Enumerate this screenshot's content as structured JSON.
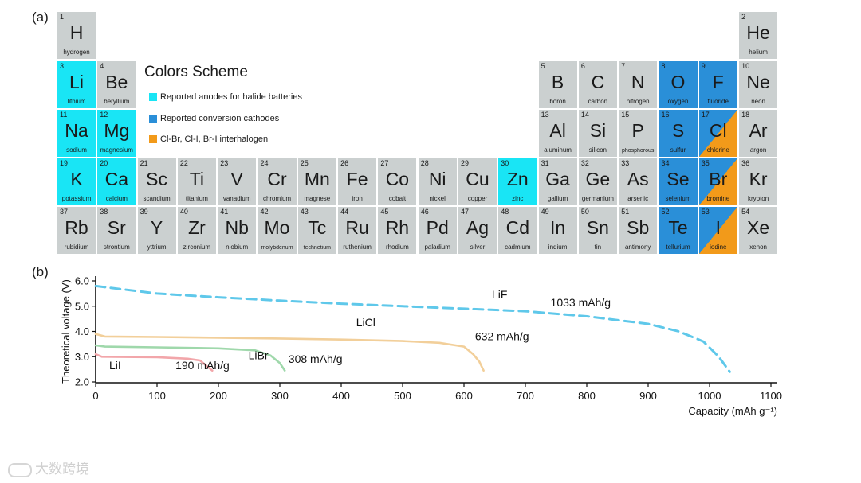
{
  "panel_a_label": "(a)",
  "panel_b_label": "(b)",
  "legend": {
    "title": "Colors Scheme",
    "items": [
      {
        "label": "Reported anodes for halide batteries",
        "color": "#19e5f5"
      },
      {
        "label": "Reported conversion cathodes",
        "color": "#2a8fd8"
      },
      {
        "label": "Cl-Br, Cl-I, Br-I interhalogen",
        "color": "#f29a1a"
      }
    ]
  },
  "elements": [
    {
      "num": "1",
      "sym": "H",
      "name": "hydrogen",
      "col": 1,
      "row": 1,
      "cat": "none"
    },
    {
      "num": "2",
      "sym": "He",
      "name": "helium",
      "col": 18,
      "row": 1,
      "cat": "none"
    },
    {
      "num": "3",
      "sym": "Li",
      "name": "lithium",
      "col": 1,
      "row": 2,
      "cat": "anode"
    },
    {
      "num": "4",
      "sym": "Be",
      "name": "beryllium",
      "col": 2,
      "row": 2,
      "cat": "none"
    },
    {
      "num": "5",
      "sym": "B",
      "name": "boron",
      "col": 13,
      "row": 2,
      "cat": "none"
    },
    {
      "num": "6",
      "sym": "C",
      "name": "carbon",
      "col": 14,
      "row": 2,
      "cat": "none"
    },
    {
      "num": "7",
      "sym": "N",
      "name": "nitrogen",
      "col": 15,
      "row": 2,
      "cat": "none"
    },
    {
      "num": "8",
      "sym": "O",
      "name": "oxygen",
      "col": 16,
      "row": 2,
      "cat": "cathode"
    },
    {
      "num": "9",
      "sym": "F",
      "name": "fluoride",
      "col": 17,
      "row": 2,
      "cat": "cathode"
    },
    {
      "num": "10",
      "sym": "Ne",
      "name": "neon",
      "col": 18,
      "row": 2,
      "cat": "none"
    },
    {
      "num": "11",
      "sym": "Na",
      "name": "sodium",
      "col": 1,
      "row": 3,
      "cat": "anode"
    },
    {
      "num": "12",
      "sym": "Mg",
      "name": "magnesium",
      "col": 2,
      "row": 3,
      "cat": "anode"
    },
    {
      "num": "13",
      "sym": "Al",
      "name": "aluminum",
      "col": 13,
      "row": 3,
      "cat": "none"
    },
    {
      "num": "14",
      "sym": "Si",
      "name": "silicon",
      "col": 14,
      "row": 3,
      "cat": "none"
    },
    {
      "num": "15",
      "sym": "P",
      "name": "phosphorous",
      "col": 15,
      "row": 3,
      "cat": "none"
    },
    {
      "num": "16",
      "sym": "S",
      "name": "sulfur",
      "col": 16,
      "row": 3,
      "cat": "cathode"
    },
    {
      "num": "17",
      "sym": "Cl",
      "name": "chlorine",
      "col": 17,
      "row": 3,
      "cat": "halo"
    },
    {
      "num": "18",
      "sym": "Ar",
      "name": "argon",
      "col": 18,
      "row": 3,
      "cat": "none"
    },
    {
      "num": "19",
      "sym": "K",
      "name": "potassium",
      "col": 1,
      "row": 4,
      "cat": "anode"
    },
    {
      "num": "20",
      "sym": "Ca",
      "name": "calcium",
      "col": 2,
      "row": 4,
      "cat": "anode"
    },
    {
      "num": "21",
      "sym": "Sc",
      "name": "scandium",
      "col": 3,
      "row": 4,
      "cat": "none"
    },
    {
      "num": "22",
      "sym": "Ti",
      "name": "titanium",
      "col": 4,
      "row": 4,
      "cat": "none"
    },
    {
      "num": "23",
      "sym": "V",
      "name": "vanadium",
      "col": 5,
      "row": 4,
      "cat": "none"
    },
    {
      "num": "24",
      "sym": "Cr",
      "name": "chromium",
      "col": 6,
      "row": 4,
      "cat": "none"
    },
    {
      "num": "25",
      "sym": "Mn",
      "name": "magnese",
      "col": 7,
      "row": 4,
      "cat": "none"
    },
    {
      "num": "26",
      "sym": "Fe",
      "name": "iron",
      "col": 8,
      "row": 4,
      "cat": "none"
    },
    {
      "num": "27",
      "sym": "Co",
      "name": "cobalt",
      "col": 9,
      "row": 4,
      "cat": "none"
    },
    {
      "num": "28",
      "sym": "Ni",
      "name": "nickel",
      "col": 10,
      "row": 4,
      "cat": "none"
    },
    {
      "num": "29",
      "sym": "Cu",
      "name": "copper",
      "col": 11,
      "row": 4,
      "cat": "none"
    },
    {
      "num": "30",
      "sym": "Zn",
      "name": "zinc",
      "col": 12,
      "row": 4,
      "cat": "anode"
    },
    {
      "num": "31",
      "sym": "Ga",
      "name": "gallium",
      "col": 13,
      "row": 4,
      "cat": "none"
    },
    {
      "num": "32",
      "sym": "Ge",
      "name": "germanium",
      "col": 14,
      "row": 4,
      "cat": "none"
    },
    {
      "num": "33",
      "sym": "As",
      "name": "arsenic",
      "col": 15,
      "row": 4,
      "cat": "none"
    },
    {
      "num": "34",
      "sym": "Se",
      "name": "selenium",
      "col": 16,
      "row": 4,
      "cat": "cathode"
    },
    {
      "num": "35",
      "sym": "Br",
      "name": "bromine",
      "col": 17,
      "row": 4,
      "cat": "halo"
    },
    {
      "num": "36",
      "sym": "Kr",
      "name": "krypton",
      "col": 18,
      "row": 4,
      "cat": "none"
    },
    {
      "num": "37",
      "sym": "Rb",
      "name": "rubidium",
      "col": 1,
      "row": 5,
      "cat": "none"
    },
    {
      "num": "38",
      "sym": "Sr",
      "name": "strontium",
      "col": 2,
      "row": 5,
      "cat": "none"
    },
    {
      "num": "39",
      "sym": "Y",
      "name": "yttrium",
      "col": 3,
      "row": 5,
      "cat": "none"
    },
    {
      "num": "40",
      "sym": "Zr",
      "name": "zirconium",
      "col": 4,
      "row": 5,
      "cat": "none"
    },
    {
      "num": "41",
      "sym": "Nb",
      "name": "niobium",
      "col": 5,
      "row": 5,
      "cat": "none"
    },
    {
      "num": "42",
      "sym": "Mo",
      "name": "molybdenum",
      "col": 6,
      "row": 5,
      "cat": "none"
    },
    {
      "num": "43",
      "sym": "Tc",
      "name": "technetium",
      "col": 7,
      "row": 5,
      "cat": "none"
    },
    {
      "num": "44",
      "sym": "Ru",
      "name": "ruthenium",
      "col": 8,
      "row": 5,
      "cat": "none"
    },
    {
      "num": "45",
      "sym": "Rh",
      "name": "rhodium",
      "col": 9,
      "row": 5,
      "cat": "none"
    },
    {
      "num": "46",
      "sym": "Pd",
      "name": "paladium",
      "col": 10,
      "row": 5,
      "cat": "none"
    },
    {
      "num": "47",
      "sym": "Ag",
      "name": "silver",
      "col": 11,
      "row": 5,
      "cat": "none"
    },
    {
      "num": "48",
      "sym": "Cd",
      "name": "cadmium",
      "col": 12,
      "row": 5,
      "cat": "none"
    },
    {
      "num": "49",
      "sym": "In",
      "name": "indium",
      "col": 13,
      "row": 5,
      "cat": "none"
    },
    {
      "num": "50",
      "sym": "Sn",
      "name": "tin",
      "col": 14,
      "row": 5,
      "cat": "none"
    },
    {
      "num": "51",
      "sym": "Sb",
      "name": "antimony",
      "col": 15,
      "row": 5,
      "cat": "none"
    },
    {
      "num": "52",
      "sym": "Te",
      "name": "tellurium",
      "col": 16,
      "row": 5,
      "cat": "cathode"
    },
    {
      "num": "53",
      "sym": "I",
      "name": "iodine",
      "col": 17,
      "row": 5,
      "cat": "halo"
    },
    {
      "num": "54",
      "sym": "Xe",
      "name": "xenon",
      "col": 18,
      "row": 5,
      "cat": "none"
    }
  ],
  "chart_data": {
    "type": "line",
    "title": "",
    "xlabel": "Capacity (mAh g⁻¹)",
    "ylabel": "Theoretical voltage (V)",
    "xlim": [
      0,
      1100
    ],
    "ylim": [
      2.0,
      6.0
    ],
    "xticks": [
      0,
      100,
      200,
      300,
      400,
      500,
      600,
      700,
      800,
      900,
      1000,
      1100
    ],
    "yticks": [
      2.0,
      3.0,
      4.0,
      5.0,
      6.0
    ],
    "grid": false,
    "series": [
      {
        "name": "LiF",
        "capacity_label": "1033 mAh/g",
        "color": "#5fc8ea",
        "dashed": true,
        "x": [
          0,
          100,
          200,
          300,
          400,
          500,
          600,
          700,
          800,
          900,
          950,
          990,
          1015,
          1033
        ],
        "y": [
          5.8,
          5.5,
          5.35,
          5.22,
          5.1,
          5.0,
          4.9,
          4.8,
          4.6,
          4.3,
          4.0,
          3.6,
          3.0,
          2.4
        ]
      },
      {
        "name": "LiCl",
        "capacity_label": "632 mAh/g",
        "color": "#f2cf9a",
        "dashed": false,
        "x": [
          0,
          15,
          100,
          200,
          300,
          400,
          500,
          560,
          600,
          615,
          625,
          632
        ],
        "y": [
          3.9,
          3.8,
          3.78,
          3.75,
          3.72,
          3.68,
          3.62,
          3.55,
          3.4,
          3.1,
          2.8,
          2.45
        ]
      },
      {
        "name": "LiBr",
        "capacity_label": "308 mAh/g",
        "color": "#9fd8ab",
        "dashed": false,
        "x": [
          0,
          15,
          100,
          200,
          260,
          285,
          300,
          308
        ],
        "y": [
          3.45,
          3.4,
          3.37,
          3.33,
          3.25,
          3.05,
          2.75,
          2.45
        ]
      },
      {
        "name": "LiI",
        "capacity_label": "190 mAh/g",
        "color": "#f2a6aa",
        "dashed": false,
        "x": [
          0,
          10,
          100,
          150,
          170,
          180,
          190
        ],
        "y": [
          3.1,
          3.0,
          2.98,
          2.92,
          2.85,
          2.65,
          2.45
        ]
      }
    ]
  },
  "watermark": "大数跨境"
}
